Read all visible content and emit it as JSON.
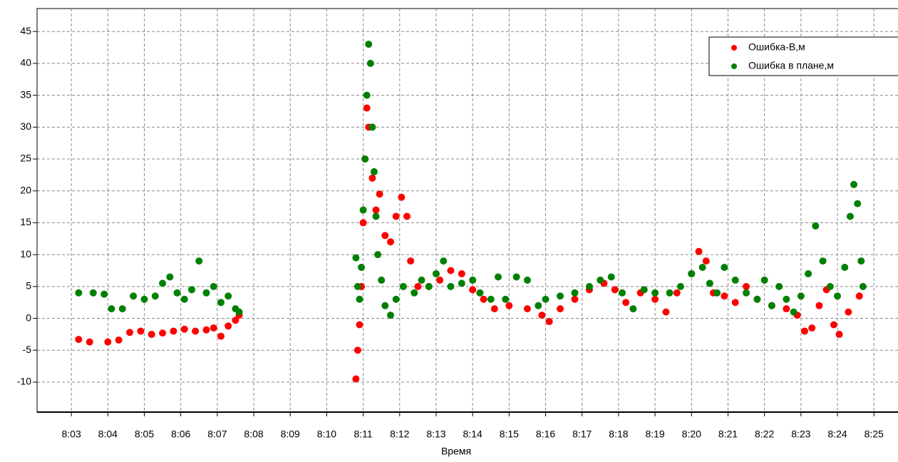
{
  "chart_data": {
    "type": "scatter",
    "x_label": "Время",
    "xlim": [
      482.06,
      505.66
    ],
    "ylim": [
      -14.7,
      48.6
    ],
    "xticks": [
      {
        "value": 483,
        "label": "8:03"
      },
      {
        "value": 484,
        "label": "8:04"
      },
      {
        "value": 485,
        "label": "8:05"
      },
      {
        "value": 486,
        "label": "8:06"
      },
      {
        "value": 487,
        "label": "8:07"
      },
      {
        "value": 488,
        "label": "8:08"
      },
      {
        "value": 489,
        "label": "8:09"
      },
      {
        "value": 490,
        "label": "8:10"
      },
      {
        "value": 491,
        "label": "8:11"
      },
      {
        "value": 492,
        "label": "8:12"
      },
      {
        "value": 493,
        "label": "8:13"
      },
      {
        "value": 494,
        "label": "8:14"
      },
      {
        "value": 495,
        "label": "8:15"
      },
      {
        "value": 496,
        "label": "8:16"
      },
      {
        "value": 497,
        "label": "8:17"
      },
      {
        "value": 498,
        "label": "8:18"
      },
      {
        "value": 499,
        "label": "8:19"
      },
      {
        "value": 500,
        "label": "8:20"
      },
      {
        "value": 501,
        "label": "8:21"
      },
      {
        "value": 502,
        "label": "8:22"
      },
      {
        "value": 503,
        "label": "8:23"
      },
      {
        "value": 504,
        "label": "8:24"
      },
      {
        "value": 505,
        "label": "8:25"
      }
    ],
    "yticks": [
      -10,
      -5,
      0,
      5,
      10,
      15,
      20,
      25,
      30,
      35,
      40,
      45
    ],
    "grid": true,
    "legend": "upper right",
    "series": [
      {
        "name": "Ошибка-В,м",
        "color": "#ff0000",
        "x": [
          483.2,
          483.5,
          484,
          484.3,
          484.6,
          484.9,
          485.2,
          485.5,
          485.8,
          486.1,
          486.4,
          486.7,
          486.9,
          487.1,
          487.3,
          487.5,
          487.6,
          490.8,
          490.85,
          490.9,
          490.95,
          491,
          491.05,
          491.1,
          491.15,
          491.25,
          491.35,
          491.45,
          491.6,
          491.75,
          491.9,
          492.05,
          492.2,
          492.3,
          492.5,
          492.8,
          493.1,
          493.4,
          493.7,
          494,
          494.3,
          494.6,
          495,
          495.5,
          495.9,
          496.1,
          496.4,
          496.8,
          497.2,
          497.6,
          497.9,
          498.2,
          498.6,
          499,
          499.3,
          499.6,
          500,
          500.2,
          500.4,
          500.6,
          500.9,
          501.2,
          501.5,
          501.8,
          502.2,
          502.6,
          502.9,
          503.1,
          503.3,
          503.5,
          503.7,
          503.9,
          504.05,
          504.3,
          504.6
        ],
        "values": [
          -3.3,
          -3.7,
          -3.7,
          -3.4,
          -2.2,
          -2,
          -2.5,
          -2.3,
          -2,
          -1.7,
          -2,
          -1.8,
          -1.5,
          -2.8,
          -1.2,
          -0.3,
          0.5,
          -9.5,
          -5,
          -1,
          5,
          15,
          25,
          33,
          30,
          22,
          17,
          19.5,
          13,
          12,
          16,
          19,
          16,
          9,
          5,
          5,
          6,
          7.5,
          7,
          4.5,
          3,
          1.5,
          2,
          1.5,
          0.5,
          -0.5,
          1.5,
          3,
          4.5,
          5.5,
          4.5,
          2.5,
          4,
          3,
          1,
          4,
          7,
          10.5,
          9,
          4,
          3.5,
          2.5,
          5,
          3,
          2,
          1.5,
          0.5,
          -2,
          -1.5,
          2,
          4.5,
          -1,
          -2.5,
          1,
          3.5
        ]
      },
      {
        "name": "Ошибка в плане,м",
        "color": "#008000",
        "x": [
          483.2,
          483.6,
          483.9,
          484.1,
          484.4,
          484.7,
          485,
          485.3,
          485.5,
          485.7,
          485.9,
          486.1,
          486.3,
          486.5,
          486.7,
          486.9,
          487.1,
          487.3,
          487.5,
          487.6,
          490.8,
          490.85,
          490.9,
          490.95,
          491,
          491.05,
          491.1,
          491.15,
          491.2,
          491.25,
          491.3,
          491.35,
          491.4,
          491.5,
          491.6,
          491.75,
          491.9,
          492.1,
          492.4,
          492.6,
          492.8,
          493,
          493.2,
          493.4,
          493.7,
          494,
          494.2,
          494.5,
          494.7,
          494.9,
          495.2,
          495.5,
          495.8,
          496,
          496.4,
          496.8,
          497.2,
          497.5,
          497.8,
          498.1,
          498.4,
          498.7,
          499,
          499.4,
          499.7,
          500,
          500.3,
          500.5,
          500.7,
          500.9,
          501.2,
          501.5,
          501.8,
          502,
          502.2,
          502.4,
          502.6,
          502.8,
          503,
          503.2,
          503.4,
          503.6,
          503.8,
          504,
          504.2,
          504.35,
          504.45,
          504.55,
          504.65,
          504.7
        ],
        "values": [
          4,
          4,
          3.8,
          1.5,
          1.5,
          3.5,
          3,
          3.5,
          5.5,
          6.5,
          4,
          3,
          4.5,
          9,
          4,
          5,
          2.5,
          3.5,
          1.5,
          1,
          9.5,
          5,
          3,
          8,
          17,
          25,
          35,
          43,
          40,
          30,
          23,
          16,
          10,
          6,
          2,
          0.5,
          3,
          5,
          4,
          6,
          5,
          7,
          9,
          5,
          5.5,
          6,
          4,
          3,
          6.5,
          3,
          6.5,
          6,
          2,
          3,
          3.5,
          4,
          5,
          6,
          6.5,
          4,
          1.5,
          4.5,
          4,
          4,
          5,
          7,
          8,
          5.5,
          4,
          8,
          6,
          4,
          3,
          6,
          2,
          5,
          3,
          1,
          3.5,
          7,
          14.5,
          9,
          5,
          3.5,
          8,
          16,
          21,
          18,
          9,
          5
        ]
      }
    ]
  }
}
